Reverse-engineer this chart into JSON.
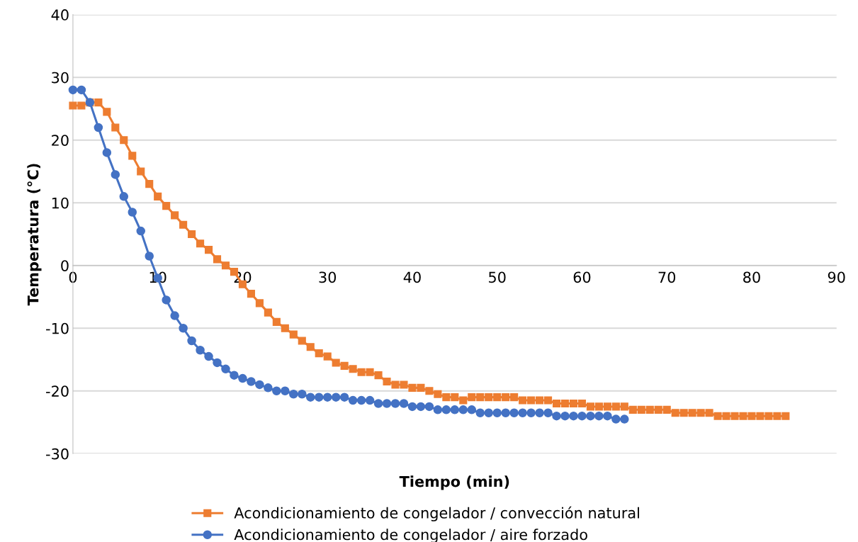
{
  "chart_data": {
    "type": "line",
    "xlabel": "Tiempo (min)",
    "ylabel": "Temperatura (°C)",
    "xlim": [
      0,
      90
    ],
    "xticks": [
      0,
      10,
      20,
      30,
      40,
      50,
      60,
      70,
      80,
      90
    ],
    "ylim": [
      -30,
      40
    ],
    "yticks": [
      -30,
      -20,
      -10,
      0,
      10,
      20,
      30,
      40
    ],
    "grid": "y",
    "legend": "bottom",
    "series": [
      {
        "name": "Acondicionamiento de congelador / convección natural",
        "color": "#ed7d31",
        "marker": "square",
        "x": [
          0,
          1,
          2,
          3,
          4,
          5,
          6,
          7,
          8,
          9,
          10,
          11,
          12,
          13,
          14,
          15,
          16,
          17,
          18,
          19,
          20,
          21,
          22,
          23,
          24,
          25,
          26,
          27,
          28,
          29,
          30,
          31,
          32,
          33,
          34,
          35,
          36,
          37,
          38,
          39,
          40,
          41,
          42,
          43,
          44,
          45,
          46,
          47,
          48,
          49,
          50,
          51,
          52,
          53,
          54,
          55,
          56,
          57,
          58,
          59,
          60,
          61,
          62,
          63,
          64,
          65,
          66,
          67,
          68,
          69,
          70,
          71,
          72,
          73,
          74,
          75,
          76,
          77,
          78,
          79,
          80,
          81,
          82,
          83,
          84
        ],
        "values": [
          25.5,
          25.5,
          26,
          26,
          24.5,
          22,
          20,
          17.5,
          15,
          13,
          11,
          9.5,
          8,
          6.5,
          5,
          3.5,
          2.5,
          1,
          0,
          -1,
          -3,
          -4.5,
          -6,
          -7.5,
          -9,
          -10,
          -11,
          -12,
          -13,
          -14,
          -14.5,
          -15.5,
          -16,
          -16.5,
          -17,
          -17,
          -17.5,
          -18.5,
          -19,
          -19,
          -19.5,
          -19.5,
          -20,
          -20.5,
          -21,
          -21,
          -21.5,
          -21,
          -21,
          -21,
          -21,
          -21,
          -21,
          -21.5,
          -21.5,
          -21.5,
          -21.5,
          -22,
          -22,
          -22,
          -22,
          -22.5,
          -22.5,
          -22.5,
          -22.5,
          -22.5,
          -23,
          -23,
          -23,
          -23,
          -23,
          -23.5,
          -23.5,
          -23.5,
          -23.5,
          -23.5,
          -24,
          -24,
          -24,
          -24,
          -24,
          -24,
          -24,
          -24,
          -24
        ]
      },
      {
        "name": "Acondicionamiento de congelador / aire forzado",
        "color": "#4472c4",
        "marker": "circle",
        "x": [
          0,
          1,
          2,
          3,
          4,
          5,
          6,
          7,
          8,
          9,
          10,
          11,
          12,
          13,
          14,
          15,
          16,
          17,
          18,
          19,
          20,
          21,
          22,
          23,
          24,
          25,
          26,
          27,
          28,
          29,
          30,
          31,
          32,
          33,
          34,
          35,
          36,
          37,
          38,
          39,
          40,
          41,
          42,
          43,
          44,
          45,
          46,
          47,
          48,
          49,
          50,
          51,
          52,
          53,
          54,
          55,
          56,
          57,
          58,
          59,
          60,
          61,
          62,
          63,
          64,
          65
        ],
        "values": [
          28,
          28,
          26,
          22,
          18,
          14.5,
          11,
          8.5,
          5.5,
          1.5,
          -2,
          -5.5,
          -8,
          -10,
          -12,
          -13.5,
          -14.5,
          -15.5,
          -16.5,
          -17.5,
          -18,
          -18.5,
          -19,
          -19.5,
          -20,
          -20,
          -20.5,
          -20.5,
          -21,
          -21,
          -21,
          -21,
          -21,
          -21.5,
          -21.5,
          -21.5,
          -22,
          -22,
          -22,
          -22,
          -22.5,
          -22.5,
          -22.5,
          -23,
          -23,
          -23,
          -23,
          -23,
          -23.5,
          -23.5,
          -23.5,
          -23.5,
          -23.5,
          -23.5,
          -23.5,
          -23.5,
          -23.5,
          -24,
          -24,
          -24,
          -24,
          -24,
          -24,
          -24,
          -24.5,
          -24.5
        ]
      }
    ]
  }
}
